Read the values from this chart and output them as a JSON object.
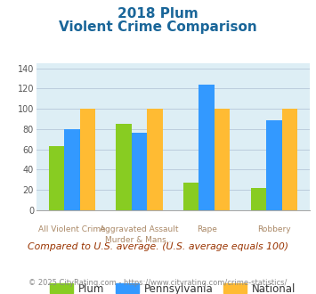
{
  "title_line1": "2018 Plum",
  "title_line2": "Violent Crime Comparison",
  "cat_labels_top": [
    "",
    "Aggravated Assault",
    "",
    ""
  ],
  "cat_labels_bot": [
    "All Violent Crime",
    "Murder & Mans...",
    "Rape",
    "Robbery"
  ],
  "series": {
    "Plum": [
      63,
      85,
      27,
      22
    ],
    "Pennsylvania": [
      80,
      76,
      124,
      89
    ],
    "National": [
      100,
      100,
      100,
      100
    ]
  },
  "colors": {
    "Plum": "#88cc22",
    "Pennsylvania": "#3399ff",
    "National": "#ffbb33"
  },
  "ylim": [
    0,
    145
  ],
  "yticks": [
    0,
    20,
    40,
    60,
    80,
    100,
    120,
    140
  ],
  "plot_bg": "#ddeef5",
  "grid_color": "#bbccdd",
  "note": "Compared to U.S. average. (U.S. average equals 100)",
  "footer": "© 2025 CityRating.com - https://www.cityrating.com/crime-statistics/",
  "title_color": "#1a6699",
  "label_color": "#aa8866",
  "note_color": "#993300",
  "footer_color": "#888888",
  "footer_link_color": "#3399cc"
}
